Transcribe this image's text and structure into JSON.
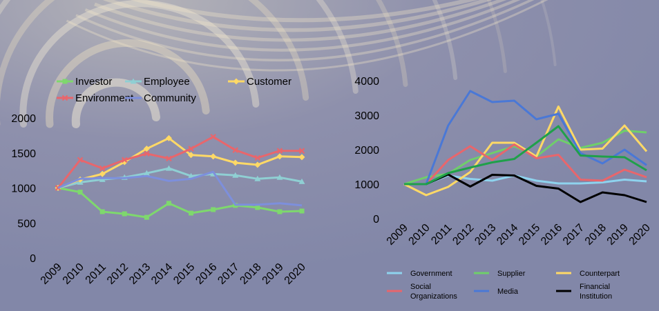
{
  "colors": {
    "background": "#8287a8",
    "text": "#000000"
  },
  "chart_data": [
    {
      "type": "line",
      "title": "",
      "xlabel": "",
      "ylabel": "",
      "ylim": [
        0,
        2000
      ],
      "yticks": [
        0,
        500,
        1000,
        1500,
        2000
      ],
      "categories": [
        "2009",
        "2010",
        "2011",
        "2012",
        "2013",
        "2014",
        "2015",
        "2016",
        "2017",
        "2018",
        "2019",
        "2020"
      ],
      "legend_position": "top",
      "series": [
        {
          "name": "Investor",
          "color": "#7ed86d",
          "marker": "square",
          "values": [
            1000,
            940,
            660,
            630,
            580,
            780,
            640,
            690,
            750,
            720,
            660,
            670
          ]
        },
        {
          "name": "Employee",
          "color": "#8fcfd3",
          "marker": "triangle",
          "values": [
            1000,
            1080,
            1120,
            1150,
            1210,
            1280,
            1170,
            1200,
            1180,
            1130,
            1150,
            1090
          ]
        },
        {
          "name": "Customer",
          "color": "#ffd966",
          "marker": "diamond",
          "values": [
            1000,
            1120,
            1200,
            1370,
            1560,
            1710,
            1470,
            1450,
            1360,
            1330,
            1450,
            1440
          ]
        },
        {
          "name": "Environment",
          "color": "#e8666c",
          "marker": "cross",
          "values": [
            1000,
            1400,
            1280,
            1400,
            1490,
            1420,
            1560,
            1730,
            1540,
            1430,
            1530,
            1530
          ]
        },
        {
          "name": "Community",
          "color": "#7d8fdc",
          "marker": "none",
          "values": [
            1000,
            1130,
            1140,
            1140,
            1170,
            1100,
            1130,
            1230,
            760,
            760,
            780,
            750
          ]
        }
      ]
    },
    {
      "type": "line",
      "title": "",
      "xlabel": "",
      "ylabel": "",
      "ylim": [
        0,
        4000
      ],
      "yticks": [
        0,
        1000,
        2000,
        3000,
        4000
      ],
      "categories": [
        "2009",
        "2010",
        "2011",
        "2012",
        "2013",
        "2014",
        "2015",
        "2016",
        "2017",
        "2018",
        "2019",
        "2020"
      ],
      "legend_position": "bottom",
      "series": [
        {
          "name": "Government",
          "color": "#8ed3ee",
          "values": [
            1000,
            1000,
            1250,
            1150,
            1100,
            1250,
            1100,
            1020,
            1020,
            1050,
            1130,
            1080
          ]
        },
        {
          "name": "Supplier",
          "color": "#6fcf6a",
          "values": [
            1000,
            1200,
            1300,
            1700,
            1900,
            2100,
            1800,
            2300,
            2050,
            2200,
            2550,
            2500
          ]
        },
        {
          "name": "Counterpart",
          "color": "#ffd966",
          "values": [
            1000,
            680,
            920,
            1350,
            2200,
            2200,
            1800,
            3250,
            2000,
            2030,
            2700,
            1950
          ]
        },
        {
          "name": "Social\nOrganizations",
          "color": "#e8666c",
          "values": [
            1000,
            1000,
            1700,
            2100,
            1700,
            2150,
            1750,
            1850,
            1130,
            1100,
            1420,
            1200
          ]
        },
        {
          "name": "Media",
          "color": "#4a78d6",
          "values": [
            1000,
            1000,
            2700,
            3700,
            3380,
            3420,
            2880,
            3040,
            1900,
            1600,
            2000,
            1550
          ]
        },
        {
          "name": "Financial\nInstitution",
          "color": "#000000",
          "values": [
            1000,
            1000,
            1280,
            930,
            1270,
            1250,
            950,
            870,
            480,
            760,
            680,
            480
          ]
        },
        {
          "name": "",
          "color": "#1fa04a",
          "values": [
            1000,
            1000,
            1320,
            1480,
            1630,
            1730,
            2200,
            2680,
            1830,
            1800,
            1780,
            1400
          ]
        }
      ]
    }
  ]
}
